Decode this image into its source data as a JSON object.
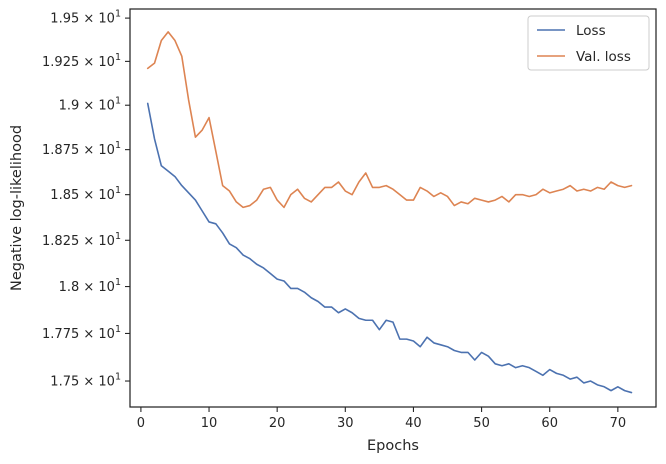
{
  "chart_data": {
    "type": "line",
    "xlabel": "Epochs",
    "ylabel": "Negative log-likelihood",
    "xlim": [
      -1.6,
      75.6
    ],
    "ylim": [
      17.365,
      19.553
    ],
    "y_scale": "log",
    "grid": false,
    "legend_position": "top-right",
    "x_ticks": [
      0,
      10,
      20,
      30,
      40,
      50,
      60,
      70
    ],
    "y_ticks": [
      {
        "value": 17.5,
        "mantissa": "1.75"
      },
      {
        "value": 17.75,
        "mantissa": "1.775"
      },
      {
        "value": 18.0,
        "mantissa": "1.8"
      },
      {
        "value": 18.25,
        "mantissa": "1.825"
      },
      {
        "value": 18.5,
        "mantissa": "1.85"
      },
      {
        "value": 18.75,
        "mantissa": "1.875"
      },
      {
        "value": 19.0,
        "mantissa": "1.9"
      },
      {
        "value": 19.25,
        "mantissa": "1.925"
      },
      {
        "value": 19.5,
        "mantissa": "1.95"
      }
    ],
    "y_tick_exponent": "× 10",
    "y_tick_power": "1",
    "series": [
      {
        "name": "Loss",
        "color": "#4c72b0",
        "x": [
          1,
          2,
          3,
          4,
          5,
          6,
          7,
          8,
          9,
          10,
          11,
          12,
          13,
          14,
          15,
          16,
          17,
          18,
          19,
          20,
          21,
          22,
          23,
          24,
          25,
          26,
          27,
          28,
          29,
          30,
          31,
          32,
          33,
          34,
          35,
          36,
          37,
          38,
          39,
          40,
          41,
          42,
          43,
          44,
          45,
          46,
          47,
          48,
          49,
          50,
          51,
          52,
          53,
          54,
          55,
          56,
          57,
          58,
          59,
          60,
          61,
          62,
          63,
          64,
          65,
          66,
          67,
          68,
          69,
          70,
          71,
          72
        ],
        "values": [
          19.01,
          18.81,
          18.66,
          18.63,
          18.6,
          18.55,
          18.51,
          18.47,
          18.41,
          18.35,
          18.34,
          18.29,
          18.23,
          18.21,
          18.17,
          18.15,
          18.12,
          18.1,
          18.07,
          18.04,
          18.03,
          17.99,
          17.99,
          17.97,
          17.94,
          17.92,
          17.89,
          17.89,
          17.86,
          17.88,
          17.86,
          17.83,
          17.82,
          17.82,
          17.77,
          17.82,
          17.81,
          17.72,
          17.72,
          17.71,
          17.68,
          17.73,
          17.7,
          17.69,
          17.68,
          17.66,
          17.65,
          17.65,
          17.61,
          17.65,
          17.63,
          17.59,
          17.58,
          17.59,
          17.57,
          17.58,
          17.57,
          17.55,
          17.53,
          17.56,
          17.54,
          17.53,
          17.51,
          17.52,
          17.49,
          17.5,
          17.48,
          17.47,
          17.45,
          17.47,
          17.45,
          17.44
        ]
      },
      {
        "name": "Val. loss",
        "color": "#dd8452",
        "x": [
          1,
          2,
          3,
          4,
          5,
          6,
          7,
          8,
          9,
          10,
          11,
          12,
          13,
          14,
          15,
          16,
          17,
          18,
          19,
          20,
          21,
          22,
          23,
          24,
          25,
          26,
          27,
          28,
          29,
          30,
          31,
          32,
          33,
          34,
          35,
          36,
          37,
          38,
          39,
          40,
          41,
          42,
          43,
          44,
          45,
          46,
          47,
          48,
          49,
          50,
          51,
          52,
          53,
          54,
          55,
          56,
          57,
          58,
          59,
          60,
          61,
          62,
          63,
          64,
          65,
          66,
          67,
          68,
          69,
          70,
          71,
          72
        ],
        "values": [
          19.21,
          19.24,
          19.37,
          19.42,
          19.37,
          19.28,
          19.03,
          18.82,
          18.86,
          18.93,
          18.74,
          18.55,
          18.52,
          18.46,
          18.43,
          18.44,
          18.47,
          18.53,
          18.54,
          18.47,
          18.43,
          18.5,
          18.53,
          18.48,
          18.46,
          18.5,
          18.54,
          18.54,
          18.57,
          18.52,
          18.5,
          18.57,
          18.62,
          18.54,
          18.54,
          18.55,
          18.53,
          18.5,
          18.47,
          18.47,
          18.54,
          18.52,
          18.49,
          18.51,
          18.49,
          18.44,
          18.46,
          18.45,
          18.48,
          18.47,
          18.46,
          18.47,
          18.49,
          18.46,
          18.5,
          18.5,
          18.49,
          18.5,
          18.53,
          18.51,
          18.52,
          18.53,
          18.55,
          18.52,
          18.53,
          18.52,
          18.54,
          18.53,
          18.57,
          18.55,
          18.54,
          18.55
        ]
      }
    ]
  }
}
